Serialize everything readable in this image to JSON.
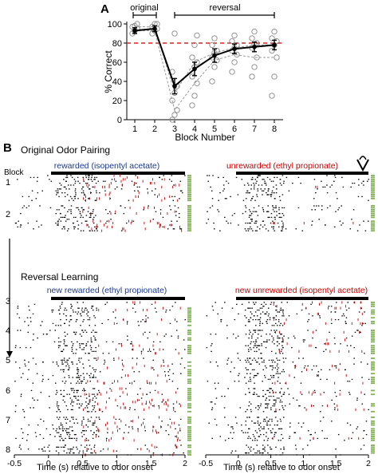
{
  "figure": {
    "panel_a_label": "A",
    "panel_b_label": "B"
  },
  "chart_data": [
    {
      "type": "line",
      "panel": "A",
      "xlabel": "Block Number",
      "ylabel": "% Correct",
      "x": [
        1,
        2,
        3,
        4,
        5,
        6,
        7,
        8
      ],
      "ylim": [
        0,
        100
      ],
      "yticks": [
        0,
        20,
        40,
        60,
        80,
        100
      ],
      "xticks": [
        1,
        2,
        3,
        4,
        5,
        6,
        7,
        8
      ],
      "criterion_line": 80,
      "bracket_labels": [
        "original",
        "reversal"
      ],
      "series": [
        {
          "role": "mean",
          "color": "#000000",
          "values": [
            93,
            95,
            35,
            53,
            67,
            74,
            76,
            78
          ],
          "error": [
            3,
            3,
            8,
            7,
            7,
            5,
            5,
            5
          ]
        },
        {
          "role": "individual-subjects",
          "color": "#888888",
          "style": "dashed-circles",
          "points": [
            [
              90,
              93,
              95,
              97,
              98,
              100
            ],
            [
              90,
              93,
              95,
              97,
              100,
              100
            ],
            [
              0,
              5,
              10,
              20,
              28,
              35,
              50,
              90
            ],
            [
              15,
              25,
              38,
              45,
              55,
              60,
              65,
              78,
              88
            ],
            [
              40,
              55,
              62,
              65,
              70,
              72,
              78,
              85
            ],
            [
              50,
              60,
              68,
              72,
              75,
              78,
              82,
              88
            ],
            [
              45,
              55,
              65,
              75,
              78,
              80,
              85,
              92
            ],
            [
              25,
              45,
              65,
              72,
              78,
              82,
              85,
              92
            ]
          ]
        }
      ]
    },
    {
      "type": "scatter",
      "panel": "B",
      "chart_subtype": "spike-raster",
      "xlabel": "Time (s) relative to odor onset",
      "xlim": [
        -0.5,
        2
      ],
      "xticks": [
        "-0.5",
        "0",
        "0.5",
        "1",
        "1.5",
        "2"
      ],
      "section_titles": [
        "Original Odor Pairing",
        "Reversal Learning"
      ],
      "row_header": "Block",
      "blocks": [
        "1",
        "2",
        "3",
        "4",
        "5",
        "6",
        "7",
        "8"
      ],
      "conditions": [
        "rewarded (isopentyl acetate)",
        "unrewarded (ethyl propionate)",
        "new rewarded (ethyl propionate)",
        "new unrewarded (isopentyl acetate)"
      ],
      "odor_bar": [
        0,
        2
      ],
      "colors": {
        "spikes": "#000000",
        "licks": "#cc0000",
        "correct_marker": "#7ab648",
        "rewarded_label": "#1a3a8a",
        "unrewarded_label": "#cc0000"
      }
    }
  ]
}
